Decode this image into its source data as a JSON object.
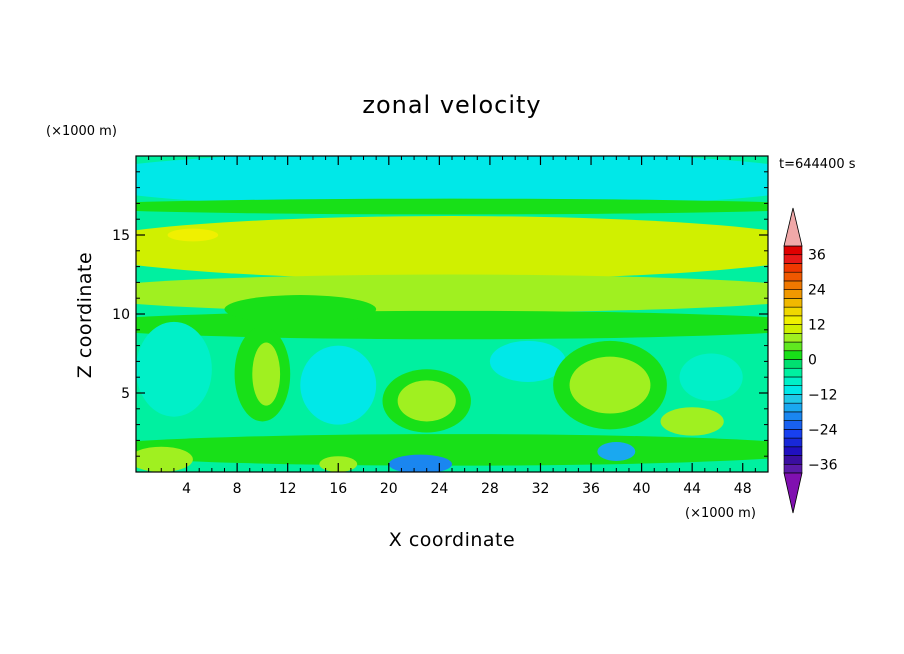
{
  "chart_data": {
    "type": "heatmap",
    "title": "zonal velocity",
    "xlabel": "X coordinate",
    "ylabel": "Z coordinate",
    "x_unit": "(×1000 m)",
    "y_unit": "(×1000 m)",
    "time_label": "t=644400 s",
    "xlim": [
      0,
      50
    ],
    "ylim": [
      0,
      20
    ],
    "x_ticks": [
      4,
      8,
      12,
      16,
      20,
      24,
      28,
      32,
      36,
      40,
      44,
      48
    ],
    "y_ticks": [
      5,
      10,
      15
    ],
    "colorbar": {
      "levels": [
        -42,
        -39,
        -36,
        -33,
        -30,
        -27,
        -24,
        -21,
        -18,
        -15,
        -12,
        -9,
        -6,
        -3,
        0,
        3,
        6,
        9,
        12,
        15,
        18,
        21,
        24,
        27,
        30,
        33,
        36,
        39,
        42
      ],
      "colors": [
        "#8010b0",
        "#5a1aa8",
        "#3a0ea0",
        "#2010c0",
        "#1828d8",
        "#1840f0",
        "#1860f0",
        "#1a86f0",
        "#1aa8f0",
        "#20c8e8",
        "#00e8e8",
        "#00f0c8",
        "#00f0a0",
        "#00e070",
        "#18e018",
        "#60e820",
        "#a0f020",
        "#d0f000",
        "#f0f000",
        "#f0d800",
        "#f0b800",
        "#f09800",
        "#f07800",
        "#f05800",
        "#f03800",
        "#e81818",
        "#e00000",
        "#f0a8a8"
      ],
      "tick_labels": [
        "36",
        "24",
        "12",
        "0",
        "−12",
        "−24",
        "−36"
      ],
      "tick_values": [
        36,
        24,
        12,
        0,
        -12,
        -24,
        -36
      ]
    },
    "blobs": [
      {
        "cx": 25,
        "cy": 18.5,
        "rx": 30,
        "ry": 1.8,
        "u": -10
      },
      {
        "cx": 25,
        "cy": 16.8,
        "rx": 30,
        "ry": 0.5,
        "u": 1
      },
      {
        "cx": 25,
        "cy": 14.2,
        "rx": 30,
        "ry": 2.0,
        "u": 10
      },
      {
        "cx": 4.5,
        "cy": 15.0,
        "rx": 2.0,
        "ry": 0.4,
        "u": 14
      },
      {
        "cx": 25,
        "cy": 11.3,
        "rx": 30,
        "ry": 1.2,
        "u": 6
      },
      {
        "cx": 25,
        "cy": 9.3,
        "rx": 30,
        "ry": 0.9,
        "u": 1
      },
      {
        "cx": 13,
        "cy": 10.3,
        "rx": 6,
        "ry": 0.9,
        "u": 2
      },
      {
        "cx": 3,
        "cy": 6.5,
        "rx": 3,
        "ry": 3,
        "u": -8
      },
      {
        "cx": 10,
        "cy": 6.2,
        "rx": 2.2,
        "ry": 3.0,
        "u": 2
      },
      {
        "cx": 10.3,
        "cy": 6.2,
        "rx": 1.1,
        "ry": 2.0,
        "u": 8
      },
      {
        "cx": 16,
        "cy": 5.5,
        "rx": 3,
        "ry": 2.5,
        "u": -10
      },
      {
        "cx": 23,
        "cy": 4.5,
        "rx": 3.5,
        "ry": 2.0,
        "u": 2
      },
      {
        "cx": 23,
        "cy": 4.5,
        "rx": 2.3,
        "ry": 1.3,
        "u": 7
      },
      {
        "cx": 31,
        "cy": 7.0,
        "rx": 3,
        "ry": 1.3,
        "u": -12
      },
      {
        "cx": 37.5,
        "cy": 5.5,
        "rx": 4.5,
        "ry": 2.8,
        "u": 2
      },
      {
        "cx": 37.5,
        "cy": 5.5,
        "rx": 3.2,
        "ry": 1.8,
        "u": 8
      },
      {
        "cx": 44,
        "cy": 3.2,
        "rx": 2.5,
        "ry": 0.9,
        "u": 7
      },
      {
        "cx": 45.5,
        "cy": 6.0,
        "rx": 2.5,
        "ry": 1.5,
        "u": -9
      },
      {
        "cx": 25,
        "cy": 1.4,
        "rx": 30,
        "ry": 1.0,
        "u": 2
      },
      {
        "cx": 2,
        "cy": 0.8,
        "rx": 2.5,
        "ry": 0.8,
        "u": 7
      },
      {
        "cx": 22.5,
        "cy": 0.5,
        "rx": 2.5,
        "ry": 0.6,
        "u": -20
      },
      {
        "cx": 38,
        "cy": 1.3,
        "rx": 1.5,
        "ry": 0.6,
        "u": -17
      },
      {
        "cx": 16,
        "cy": 0.5,
        "rx": 1.5,
        "ry": 0.5,
        "u": 6
      }
    ]
  }
}
